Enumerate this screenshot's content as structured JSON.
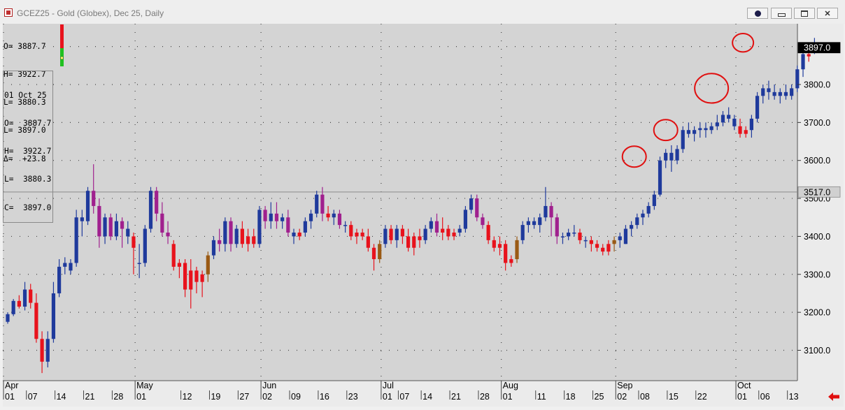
{
  "window": {
    "title": "GCEZ25 - Gold (Globex), Dec 25, Daily",
    "buttons": [
      "record",
      "minimize",
      "restore",
      "close"
    ]
  },
  "quote_top": {
    "lines": [
      "O= 3887.7",
      "H= 3922.7",
      "L= 3880.3",
      "L= 3897.0",
      "Δ=  +23.8"
    ]
  },
  "quote_box": {
    "lines": [
      "01 Oct 25",
      "O=  3887.7",
      "H=  3922.7",
      "L=  3880.3",
      "C=  3897.0"
    ]
  },
  "colors": {
    "background": "#d4d4d4",
    "up": "#1f3a9c",
    "down": "#e8121c",
    "magenta": "#a0208e",
    "brown": "#9a5a14",
    "annotation": "#e01010"
  },
  "chart_data": {
    "type": "candlestick",
    "title": "GCEZ25 - Gold (Globex), Dec 25, Daily",
    "ylim": [
      3020,
      3960
    ],
    "y_ticks": [
      "3100.0",
      "3200.0",
      "3300.0",
      "3400.0",
      "3500.0",
      "3600.0",
      "3700.0",
      "3800.0"
    ],
    "grid": true,
    "price_labels": [
      {
        "value": 3897.0,
        "text": "3897.0",
        "style": "current"
      },
      {
        "value": 3517.0,
        "text": "3517.0",
        "style": "line"
      }
    ],
    "x_tick_labels": [
      {
        "i": 0,
        "text": "01"
      },
      {
        "i": 4,
        "text": "07"
      },
      {
        "i": 9,
        "text": "14"
      },
      {
        "i": 14,
        "text": "21"
      },
      {
        "i": 19,
        "text": "28"
      },
      {
        "i": 23,
        "text": "01"
      },
      {
        "i": 31,
        "text": "12"
      },
      {
        "i": 36,
        "text": "19"
      },
      {
        "i": 41,
        "text": "27"
      },
      {
        "i": 45,
        "text": "02"
      },
      {
        "i": 50,
        "text": "09"
      },
      {
        "i": 55,
        "text": "16"
      },
      {
        "i": 60,
        "text": "23"
      },
      {
        "i": 66,
        "text": "01"
      },
      {
        "i": 69,
        "text": "07"
      },
      {
        "i": 73,
        "text": "14"
      },
      {
        "i": 78,
        "text": "21"
      },
      {
        "i": 83,
        "text": "28"
      },
      {
        "i": 87,
        "text": "01"
      },
      {
        "i": 93,
        "text": "11"
      },
      {
        "i": 98,
        "text": "18"
      },
      {
        "i": 103,
        "text": "25"
      },
      {
        "i": 107,
        "text": "02"
      },
      {
        "i": 111,
        "text": "08"
      },
      {
        "i": 116,
        "text": "15"
      },
      {
        "i": 121,
        "text": "22"
      },
      {
        "i": 128,
        "text": "01"
      },
      {
        "i": 132,
        "text": "06"
      },
      {
        "i": 137,
        "text": "13"
      }
    ],
    "month_labels": [
      {
        "i": 3,
        "text": "Apr"
      },
      {
        "i": 24.5,
        "text": "May"
      },
      {
        "i": 46,
        "text": "Jun"
      },
      {
        "i": 66.5,
        "text": "Jul"
      },
      {
        "i": 88,
        "text": "Aug"
      },
      {
        "i": 108,
        "text": "Sep"
      },
      {
        "i": 129,
        "text": "Oct"
      }
    ],
    "annotation_circles": [
      {
        "i": 109.5,
        "price": 3610,
        "note": "circle"
      },
      {
        "i": 115,
        "price": 3680,
        "note": "circle"
      },
      {
        "i": 123,
        "price": 3790,
        "note": "circle"
      },
      {
        "i": 128.5,
        "price": 3910,
        "note": "circle"
      }
    ],
    "candles": [
      [
        3175,
        3200,
        3170,
        3195,
        "b"
      ],
      [
        3195,
        3235,
        3190,
        3230,
        "b"
      ],
      [
        3230,
        3245,
        3210,
        3215,
        "r"
      ],
      [
        3215,
        3280,
        3205,
        3260,
        "b"
      ],
      [
        3260,
        3275,
        3210,
        3225,
        "r"
      ],
      [
        3225,
        3250,
        3120,
        3130,
        "r"
      ],
      [
        3130,
        3150,
        3040,
        3070,
        "r"
      ],
      [
        3070,
        3150,
        3055,
        3130,
        "b"
      ],
      [
        3130,
        3280,
        3120,
        3250,
        "b"
      ],
      [
        3250,
        3340,
        3240,
        3320,
        "b"
      ],
      [
        3320,
        3345,
        3300,
        3330,
        "b"
      ],
      [
        3310,
        3340,
        3300,
        3330,
        "b"
      ],
      [
        3330,
        3470,
        3320,
        3450,
        "b"
      ],
      [
        3450,
        3470,
        3400,
        3440,
        "b"
      ],
      [
        3440,
        3530,
        3430,
        3520,
        "b"
      ],
      [
        3520,
        3590,
        3460,
        3480,
        "m"
      ],
      [
        3480,
        3500,
        3370,
        3400,
        "m"
      ],
      [
        3400,
        3460,
        3380,
        3450,
        "b"
      ],
      [
        3450,
        3460,
        3390,
        3400,
        "m"
      ],
      [
        3400,
        3460,
        3390,
        3440,
        "b"
      ],
      [
        3440,
        3450,
        3370,
        3420,
        "m"
      ],
      [
        3420,
        3440,
        3380,
        3400,
        "b"
      ],
      [
        3400,
        3410,
        3300,
        3370,
        "r"
      ],
      [
        3330,
        3380,
        3290,
        3330,
        "b"
      ],
      [
        3330,
        3430,
        3320,
        3420,
        "b"
      ],
      [
        3420,
        3530,
        3410,
        3520,
        "b"
      ],
      [
        3520,
        3530,
        3440,
        3460,
        "m"
      ],
      [
        3460,
        3490,
        3400,
        3410,
        "m"
      ],
      [
        3410,
        3440,
        3380,
        3400,
        "m"
      ],
      [
        3380,
        3390,
        3310,
        3320,
        "r"
      ],
      [
        3320,
        3340,
        3290,
        3330,
        "r"
      ],
      [
        3330,
        3340,
        3240,
        3260,
        "r"
      ],
      [
        3260,
        3340,
        3210,
        3310,
        "r"
      ],
      [
        3310,
        3320,
        3250,
        3280,
        "r"
      ],
      [
        3280,
        3310,
        3240,
        3300,
        "r"
      ],
      [
        3300,
        3360,
        3280,
        3350,
        "w"
      ],
      [
        3350,
        3400,
        3340,
        3390,
        "b"
      ],
      [
        3390,
        3420,
        3360,
        3380,
        "m"
      ],
      [
        3380,
        3450,
        3360,
        3440,
        "b"
      ],
      [
        3440,
        3450,
        3360,
        3380,
        "m"
      ],
      [
        3380,
        3430,
        3370,
        3420,
        "b"
      ],
      [
        3420,
        3440,
        3370,
        3380,
        "r"
      ],
      [
        3380,
        3420,
        3360,
        3400,
        "r"
      ],
      [
        3400,
        3420,
        3370,
        3380,
        "r"
      ],
      [
        3380,
        3480,
        3370,
        3470,
        "b"
      ],
      [
        3470,
        3480,
        3420,
        3440,
        "m"
      ],
      [
        3440,
        3490,
        3420,
        3460,
        "b"
      ],
      [
        3460,
        3490,
        3420,
        3440,
        "m"
      ],
      [
        3440,
        3460,
        3420,
        3450,
        "b"
      ],
      [
        3450,
        3470,
        3400,
        3410,
        "m"
      ],
      [
        3410,
        3420,
        3380,
        3400,
        "b"
      ],
      [
        3400,
        3420,
        3390,
        3410,
        "r"
      ],
      [
        3410,
        3450,
        3400,
        3440,
        "b"
      ],
      [
        3440,
        3470,
        3420,
        3460,
        "b"
      ],
      [
        3460,
        3520,
        3450,
        3510,
        "b"
      ],
      [
        3510,
        3530,
        3440,
        3460,
        "m"
      ],
      [
        3460,
        3480,
        3440,
        3450,
        "r"
      ],
      [
        3450,
        3470,
        3430,
        3460,
        "b"
      ],
      [
        3460,
        3470,
        3420,
        3430,
        "m"
      ],
      [
        3430,
        3440,
        3410,
        3430,
        "b"
      ],
      [
        3430,
        3440,
        3390,
        3400,
        "r"
      ],
      [
        3400,
        3420,
        3380,
        3410,
        "r"
      ],
      [
        3410,
        3420,
        3390,
        3400,
        "r"
      ],
      [
        3400,
        3420,
        3360,
        3370,
        "r"
      ],
      [
        3370,
        3380,
        3310,
        3340,
        "r"
      ],
      [
        3340,
        3390,
        3330,
        3380,
        "w"
      ],
      [
        3380,
        3430,
        3370,
        3420,
        "b"
      ],
      [
        3420,
        3430,
        3380,
        3390,
        "r"
      ],
      [
        3390,
        3430,
        3370,
        3420,
        "b"
      ],
      [
        3420,
        3430,
        3380,
        3400,
        "r"
      ],
      [
        3400,
        3420,
        3360,
        3370,
        "r"
      ],
      [
        3370,
        3410,
        3350,
        3400,
        "r"
      ],
      [
        3400,
        3420,
        3370,
        3390,
        "r"
      ],
      [
        3390,
        3430,
        3380,
        3420,
        "b"
      ],
      [
        3420,
        3450,
        3410,
        3440,
        "b"
      ],
      [
        3440,
        3460,
        3400,
        3410,
        "m"
      ],
      [
        3410,
        3450,
        3390,
        3420,
        "r"
      ],
      [
        3420,
        3430,
        3390,
        3400,
        "r"
      ],
      [
        3400,
        3420,
        3390,
        3410,
        "r"
      ],
      [
        3410,
        3430,
        3400,
        3420,
        "b"
      ],
      [
        3420,
        3480,
        3410,
        3470,
        "b"
      ],
      [
        3470,
        3510,
        3460,
        3500,
        "b"
      ],
      [
        3500,
        3510,
        3440,
        3450,
        "m"
      ],
      [
        3450,
        3460,
        3420,
        3430,
        "m"
      ],
      [
        3430,
        3440,
        3380,
        3390,
        "r"
      ],
      [
        3390,
        3400,
        3360,
        3370,
        "r"
      ],
      [
        3370,
        3400,
        3350,
        3380,
        "r"
      ],
      [
        3380,
        3390,
        3310,
        3330,
        "r"
      ],
      [
        3330,
        3350,
        3320,
        3340,
        "r"
      ],
      [
        3340,
        3400,
        3330,
        3390,
        "w"
      ],
      [
        3390,
        3440,
        3380,
        3430,
        "b"
      ],
      [
        3430,
        3450,
        3410,
        3440,
        "b"
      ],
      [
        3440,
        3450,
        3420,
        3430,
        "b"
      ],
      [
        3430,
        3460,
        3410,
        3450,
        "b"
      ],
      [
        3450,
        3530,
        3440,
        3480,
        "b"
      ],
      [
        3480,
        3490,
        3400,
        3450,
        "m"
      ],
      [
        3450,
        3460,
        3380,
        3400,
        "m"
      ],
      [
        3400,
        3410,
        3380,
        3400,
        "b"
      ],
      [
        3400,
        3420,
        3390,
        3410,
        "b"
      ],
      [
        3410,
        3430,
        3400,
        3410,
        "b"
      ],
      [
        3410,
        3420,
        3380,
        3390,
        "r"
      ],
      [
        3390,
        3400,
        3370,
        3390,
        "b"
      ],
      [
        3390,
        3400,
        3360,
        3380,
        "r"
      ],
      [
        3380,
        3390,
        3360,
        3370,
        "r"
      ],
      [
        3370,
        3380,
        3350,
        3360,
        "r"
      ],
      [
        3360,
        3390,
        3350,
        3380,
        "r"
      ],
      [
        3380,
        3400,
        3360,
        3390,
        "w"
      ],
      [
        3390,
        3410,
        3370,
        3400,
        "b"
      ],
      [
        3380,
        3430,
        3380,
        3420,
        "b"
      ],
      [
        3420,
        3440,
        3400,
        3430,
        "b"
      ],
      [
        3430,
        3460,
        3420,
        3450,
        "b"
      ],
      [
        3450,
        3470,
        3430,
        3460,
        "b"
      ],
      [
        3460,
        3490,
        3450,
        3480,
        "b"
      ],
      [
        3480,
        3520,
        3470,
        3510,
        "b"
      ],
      [
        3510,
        3610,
        3505,
        3600,
        "b"
      ],
      [
        3600,
        3630,
        3580,
        3620,
        "b"
      ],
      [
        3620,
        3640,
        3570,
        3600,
        "b"
      ],
      [
        3600,
        3640,
        3590,
        3630,
        "b"
      ],
      [
        3630,
        3690,
        3620,
        3680,
        "b"
      ],
      [
        3680,
        3700,
        3660,
        3670,
        "b"
      ],
      [
        3670,
        3690,
        3650,
        3680,
        "b"
      ],
      [
        3680,
        3700,
        3660,
        3685,
        "b"
      ],
      [
        3685,
        3700,
        3660,
        3680,
        "b"
      ],
      [
        3680,
        3700,
        3670,
        3690,
        "b"
      ],
      [
        3690,
        3720,
        3680,
        3700,
        "b"
      ],
      [
        3700,
        3730,
        3690,
        3720,
        "b"
      ],
      [
        3720,
        3740,
        3700,
        3710,
        "b"
      ],
      [
        3710,
        3720,
        3680,
        3690,
        "b"
      ],
      [
        3690,
        3710,
        3660,
        3670,
        "r"
      ],
      [
        3670,
        3690,
        3660,
        3680,
        "r"
      ],
      [
        3680,
        3720,
        3660,
        3710,
        "b"
      ],
      [
        3710,
        3780,
        3700,
        3770,
        "b"
      ],
      [
        3770,
        3800,
        3750,
        3790,
        "b"
      ],
      [
        3790,
        3810,
        3760,
        3780,
        "b"
      ],
      [
        3780,
        3800,
        3760,
        3770,
        "b"
      ],
      [
        3770,
        3790,
        3750,
        3780,
        "b"
      ],
      [
        3780,
        3800,
        3760,
        3770,
        "b"
      ],
      [
        3770,
        3800,
        3760,
        3790,
        "b"
      ],
      [
        3790,
        3850,
        3780,
        3840,
        "b"
      ],
      [
        3840,
        3890,
        3820,
        3880,
        "b"
      ],
      [
        3880,
        3900,
        3860,
        3874,
        "r"
      ],
      [
        3887.7,
        3922.7,
        3880.3,
        3897.0,
        "b"
      ]
    ]
  }
}
